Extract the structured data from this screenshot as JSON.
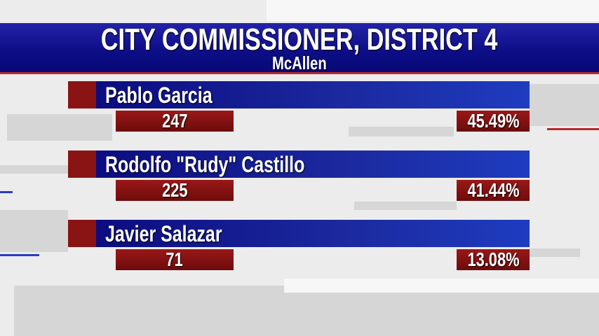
{
  "header": {
    "title": "CITY COMMISSIONER, DISTRICT 4",
    "subtitle": "McAllen"
  },
  "candidates": [
    {
      "name": "Pablo Garcia",
      "votes": "247",
      "percent": "45.49%"
    },
    {
      "name": "Rodolfo \"Rudy\" Castillo",
      "votes": "225",
      "percent": "41.44%"
    },
    {
      "name": "Javier Salazar",
      "votes": "71",
      "percent": "13.08%"
    }
  ],
  "colors": {
    "header_blue": "#0d0d86",
    "accent_red": "#8a1414",
    "name_bar_blue": "#1c2aa0"
  }
}
